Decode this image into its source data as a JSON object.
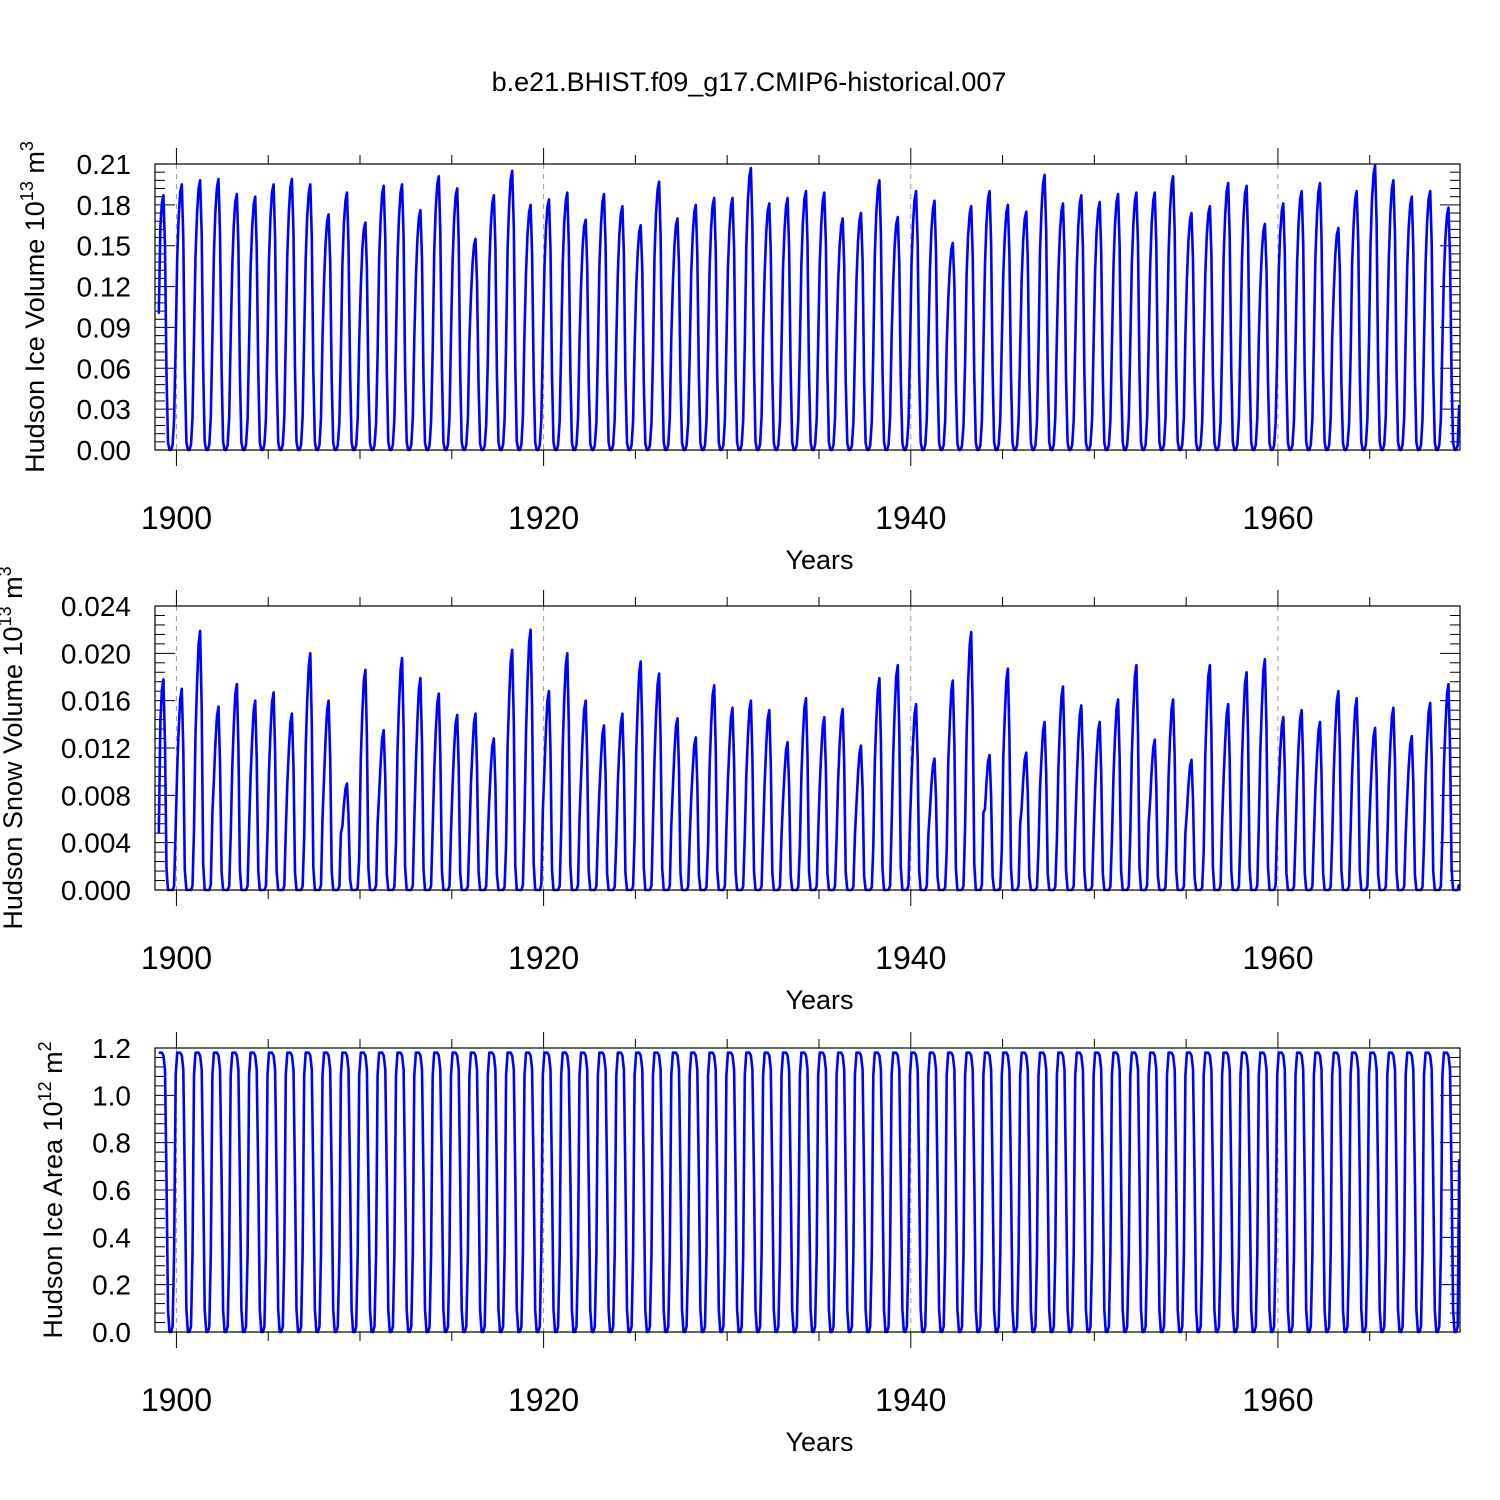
{
  "title": "b.e21.BHIST.f09_g17.CMIP6-historical.007",
  "series_color": "#0000ff",
  "chart_data": [
    {
      "type": "line",
      "title": "b.e21.BHIST.f09_g17.CMIP6-historical.007",
      "ylabel": "Hudson Ice Volume 10",
      "ylabel_exp": "13",
      "ylabel_unit": "m",
      "ylabel_unit_exp": "3",
      "xlabel": "Years",
      "xlim": [
        1898.833,
        1969.917
      ],
      "ylim": [
        0.0,
        0.21
      ],
      "yticks": [
        "0.00",
        "0.03",
        "0.06",
        "0.09",
        "0.12",
        "0.15",
        "0.18",
        "0.21"
      ],
      "yticks_values": [
        0.0,
        0.03,
        0.06,
        0.09,
        0.12,
        0.15,
        0.18,
        0.21
      ],
      "xticks": [
        "1900",
        "1920",
        "1940",
        "1960"
      ],
      "xticks_values": [
        1900,
        1920,
        1940,
        1960
      ],
      "first_value": 0.1,
      "last_value": 0.033,
      "annual_min": 0.0,
      "annual_max": [
        0.187,
        0.195,
        0.198,
        0.199,
        0.188,
        0.186,
        0.195,
        0.199,
        0.195,
        0.173,
        0.189,
        0.167,
        0.194,
        0.195,
        0.176,
        0.201,
        0.192,
        0.155,
        0.187,
        0.205,
        0.18,
        0.184,
        0.189,
        0.169,
        0.188,
        0.179,
        0.165,
        0.197,
        0.17,
        0.18,
        0.185,
        0.185,
        0.207,
        0.181,
        0.185,
        0.19,
        0.189,
        0.17,
        0.174,
        0.198,
        0.171,
        0.19,
        0.183,
        0.152,
        0.179,
        0.19,
        0.18,
        0.175,
        0.202,
        0.181,
        0.187,
        0.182,
        0.188,
        0.189,
        0.189,
        0.201,
        0.174,
        0.179,
        0.196,
        0.194,
        0.166,
        0.181,
        0.19,
        0.196,
        0.163,
        0.19,
        0.209,
        0.198,
        0.186,
        0.19,
        0.178
      ]
    },
    {
      "type": "line",
      "ylabel": "Hudson Snow Volume 10",
      "ylabel_exp": "13",
      "ylabel_unit": "m",
      "ylabel_unit_exp": "3",
      "xlabel": "Years",
      "xlim": [
        1898.833,
        1969.917
      ],
      "ylim": [
        0.0,
        0.024
      ],
      "yticks": [
        "0.000",
        "0.004",
        "0.008",
        "0.012",
        "0.016",
        "0.020",
        "0.024"
      ],
      "yticks_values": [
        0.0,
        0.004,
        0.008,
        0.012,
        0.016,
        0.02,
        0.024
      ],
      "xticks": [
        "1900",
        "1920",
        "1940",
        "1960"
      ],
      "xticks_values": [
        1900,
        1920,
        1940,
        1960
      ],
      "first_value": 0.0048,
      "last_value": 0.0005,
      "annual_min": 0.0,
      "annual_max": [
        0.0178,
        0.017,
        0.0219,
        0.0155,
        0.0174,
        0.016,
        0.0167,
        0.0149,
        0.02,
        0.016,
        0.009,
        0.0186,
        0.0135,
        0.0196,
        0.0179,
        0.0166,
        0.0148,
        0.0149,
        0.0128,
        0.0203,
        0.022,
        0.0168,
        0.02,
        0.016,
        0.0139,
        0.0149,
        0.0193,
        0.0183,
        0.0145,
        0.0129,
        0.0173,
        0.0154,
        0.016,
        0.0152,
        0.0125,
        0.0162,
        0.0146,
        0.0153,
        0.0122,
        0.0179,
        0.019,
        0.0157,
        0.0111,
        0.0177,
        0.0218,
        0.0114,
        0.0187,
        0.0116,
        0.0142,
        0.0172,
        0.0156,
        0.0142,
        0.0161,
        0.019,
        0.0127,
        0.0161,
        0.011,
        0.019,
        0.0157,
        0.0184,
        0.0195,
        0.0146,
        0.0152,
        0.0142,
        0.0168,
        0.0162,
        0.0137,
        0.0154,
        0.013,
        0.0158,
        0.0174
      ]
    },
    {
      "type": "line",
      "ylabel": "Hudson Ice Area 10",
      "ylabel_exp": "12",
      "ylabel_unit": "m",
      "ylabel_unit_exp": "2",
      "xlabel": "Years",
      "xlim": [
        1898.833,
        1969.917
      ],
      "ylim": [
        0.0,
        1.2
      ],
      "yticks": [
        "0.0",
        "0.2",
        "0.4",
        "0.6",
        "0.8",
        "1.0",
        "1.2"
      ],
      "yticks_values": [
        0.0,
        0.2,
        0.4,
        0.6,
        0.8,
        1.0,
        1.2
      ],
      "xticks": [
        "1900",
        "1920",
        "1940",
        "1960"
      ],
      "xticks_values": [
        1900,
        1920,
        1940,
        1960
      ],
      "first_value": 1.18,
      "last_value": 0.73,
      "annual_min": 0.0,
      "annual_max_constant": 1.18
    }
  ]
}
